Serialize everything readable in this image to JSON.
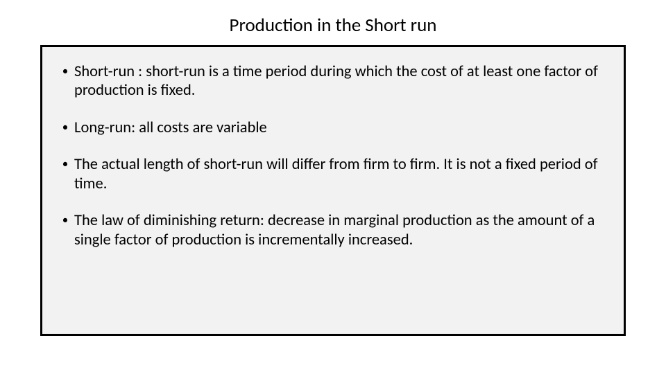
{
  "slide": {
    "title": "Production in the Short run",
    "bullets": [
      "Short-run : short-run is a time period during which the cost of at least one factor of production is fixed.",
      "Long-run: all costs are variable",
      "The actual length of short-run will differ from firm to firm. It is not a fixed period of time.",
      "The law of diminishing return: decrease in marginal production as the amount of a single factor of production is incrementally increased."
    ]
  },
  "styling": {
    "background_color": "#ffffff",
    "box_background": "#f2f2f2",
    "box_border_color": "#000000",
    "box_border_width": 3,
    "text_color": "#000000",
    "title_fontsize": 27,
    "body_fontsize": 22.5,
    "bullet_marker": "•"
  }
}
